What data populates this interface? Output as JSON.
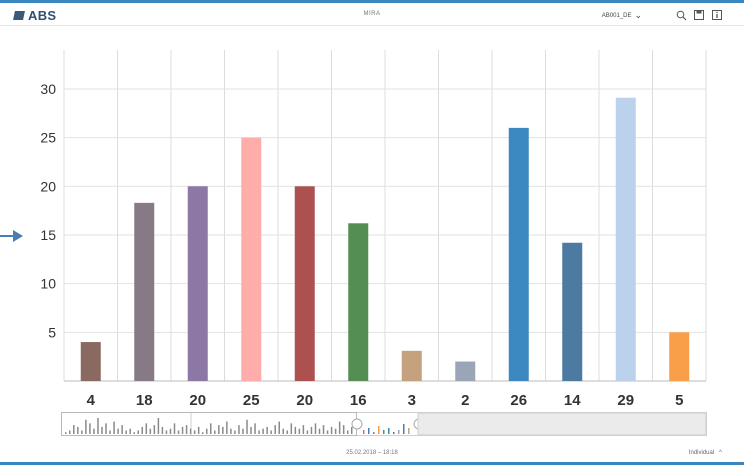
{
  "header": {
    "brand": "ABS",
    "title": "MIRA",
    "user": "AB001_DE",
    "user_caret": "⌄"
  },
  "icons": {
    "brand": "logo-mark",
    "search": "zoom-icon",
    "save": "save-icon",
    "info": "info-icon",
    "pointer": "arrow-right-icon"
  },
  "chart_data": {
    "type": "bar",
    "categories": [
      "4",
      "18",
      "20",
      "25",
      "20",
      "16",
      "3",
      "2",
      "26",
      "14",
      "29",
      "5"
    ],
    "values": [
      4,
      18.3,
      20,
      25,
      20,
      16.2,
      3.1,
      2,
      26,
      14.2,
      29.1,
      5
    ],
    "colors": [
      "#8a6a60",
      "#857a86",
      "#8c77a5",
      "#ffadab",
      "#ad5050",
      "#548e52",
      "#c6a17d",
      "#9aa6b8",
      "#3b89c0",
      "#4c7aa0",
      "#bcd2ec",
      "#f99e49"
    ],
    "yticks": [
      5,
      10,
      15,
      20,
      25,
      30
    ],
    "ylim": [
      0,
      34
    ],
    "grid": true
  },
  "navigator": {
    "series": [
      1,
      2,
      5,
      4,
      2,
      8,
      6,
      3,
      9,
      4,
      6,
      2,
      7,
      3,
      5,
      2,
      3,
      1,
      2,
      4,
      6,
      3,
      5,
      9,
      4,
      2,
      3,
      6,
      2,
      4,
      5,
      3,
      2,
      4,
      1,
      3,
      6,
      2,
      5,
      4,
      7,
      3,
      2,
      5,
      3,
      8,
      4,
      6,
      2,
      3,
      4,
      2,
      5,
      7,
      3,
      2,
      6,
      4,
      3,
      5,
      2,
      4,
      6,
      3,
      5,
      2,
      4,
      3,
      7,
      5,
      2,
      4
    ],
    "extra": [
      2,
      3,
      1,
      4,
      2,
      3,
      1,
      2,
      5,
      3
    ]
  },
  "footer": {
    "timestamp": "25.02.2018 – 18:18",
    "mode": "Individual",
    "mode_caret": "^"
  }
}
